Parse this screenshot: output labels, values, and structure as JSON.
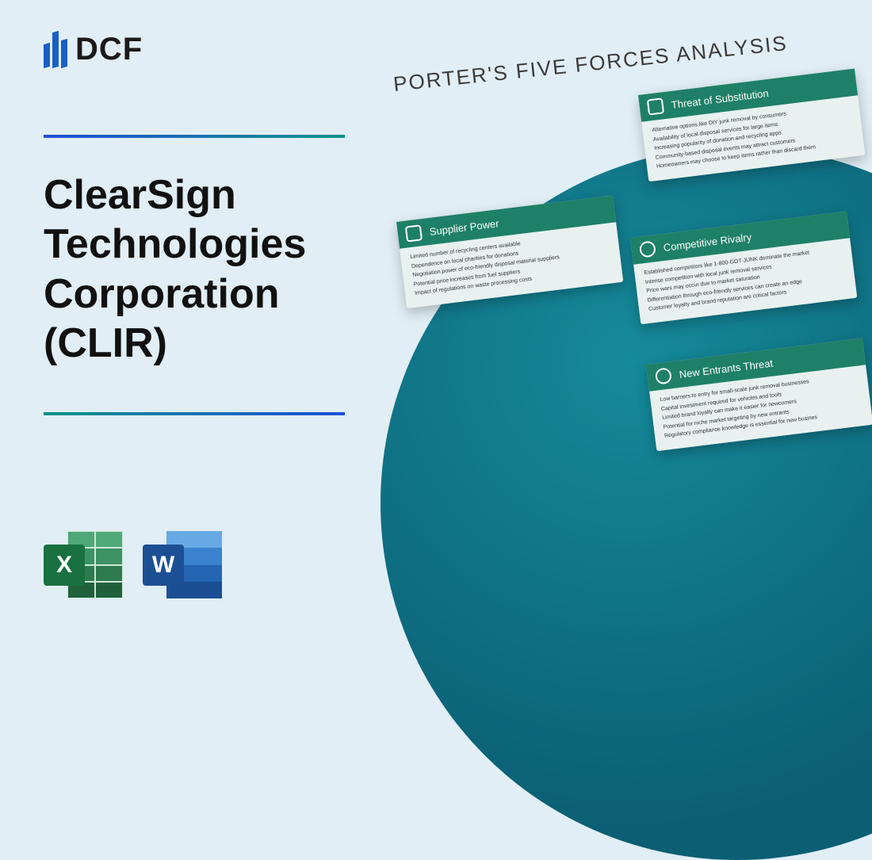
{
  "logo": {
    "text": "DCF"
  },
  "title": "ClearSign Technologies Corporation (CLIR)",
  "icons": {
    "excel": "X",
    "word": "W"
  },
  "graphic_title": "PORTER'S FIVE FORCES ANALYSIS",
  "colors": {
    "background": "#e1eef5",
    "card_header": "#1e8067",
    "circle_gradient_from": "#158a9b",
    "circle_gradient_to": "#0b5e73",
    "divider_from": "#1e4fd8",
    "divider_to": "#0e9388",
    "excel_badge": "#18713f",
    "word_badge": "#1d4f94"
  },
  "cards": {
    "substitution": {
      "title": "Threat of Substitution",
      "items": [
        "Alternative options like DIY junk removal by consumers",
        "Availability of local disposal services for large items",
        "Increasing popularity of donation and recycling apps",
        "Community-based disposal events may attract customers",
        "Homeowners may choose to keep items rather than discard them"
      ]
    },
    "supplier": {
      "title": "Supplier Power",
      "items": [
        "Limited number of recycling centers available",
        "Dependence on local charities for donations",
        "Negotiation power of eco-friendly disposal material suppliers",
        "Potential price increases from fuel suppliers",
        "Impact of regulations on waste processing costs"
      ]
    },
    "rivalry": {
      "title": "Competitive Rivalry",
      "items": [
        "Established competitors like 1-800-GOT-JUNK dominate the market",
        "Intense competition with local junk removal services",
        "Price wars may occur due to market saturation",
        "Differentiation through eco-friendly services can create an edge",
        "Customer loyalty and brand reputation are critical factors"
      ]
    },
    "entrants": {
      "title": "New Entrants Threat",
      "items": [
        "Low barriers to entry for small-scale junk removal businesses",
        "Capital investment required for vehicles and tools",
        "Limited brand loyalty can make it easier for newcomers",
        "Potential for niche market targeting by new entrants",
        "Regulatory compliance knowledge is essential for new busines"
      ]
    }
  }
}
